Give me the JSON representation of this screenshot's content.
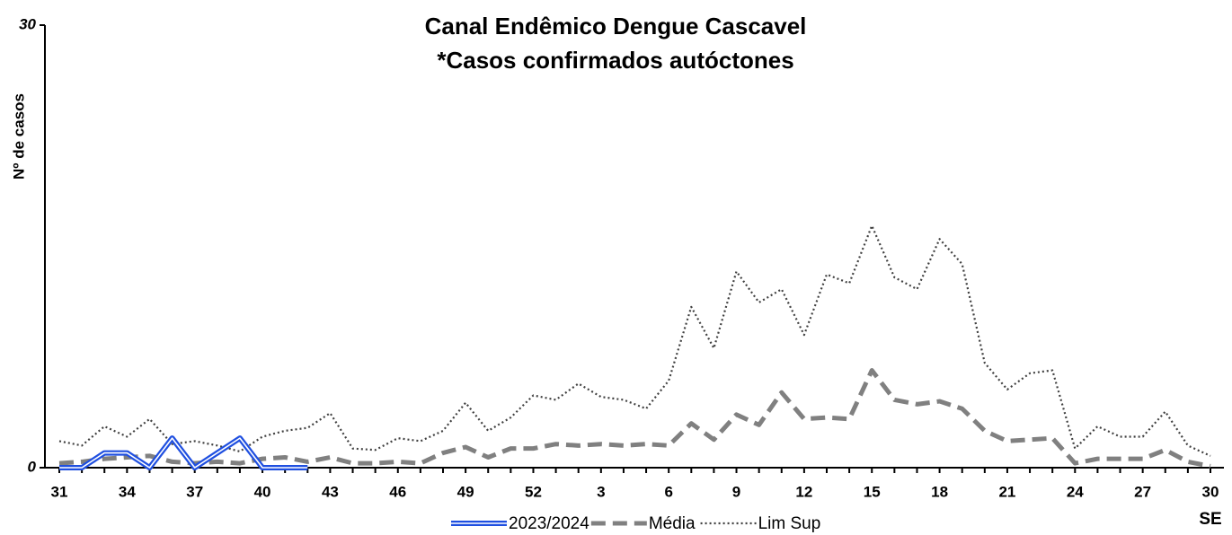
{
  "chart_data": {
    "type": "line",
    "title": "Canal Endêmico Dengue Cascavel",
    "subtitle": "*Casos confirmados autóctones",
    "y_label": "Nº de casos",
    "x_label": "SE",
    "categories": [
      "31",
      null,
      null,
      "34",
      null,
      null,
      "37",
      null,
      null,
      "40",
      null,
      null,
      "43",
      null,
      null,
      "46",
      null,
      null,
      "49",
      null,
      null,
      "52",
      null,
      null,
      "3",
      null,
      null,
      "6",
      null,
      null,
      "9",
      null,
      null,
      "12",
      null,
      null,
      "15",
      null,
      null,
      "18",
      null,
      null,
      "21",
      null,
      null,
      "24",
      null,
      null,
      "27",
      null,
      null,
      "30"
    ],
    "ylim": [
      0,
      30
    ],
    "yticks": [
      0,
      30
    ],
    "series": [
      {
        "name": "2023/2024",
        "color": "#1f4fe0",
        "line_style": "double",
        "values": [
          0,
          0,
          1,
          1,
          0,
          2,
          0,
          1,
          2,
          0,
          0,
          0,
          null,
          null,
          null,
          null,
          null,
          null,
          null,
          null,
          null,
          null,
          null,
          null,
          null,
          null,
          null,
          null,
          null,
          null,
          null,
          null,
          null,
          null,
          null,
          null,
          null,
          null,
          null,
          null,
          null,
          null,
          null,
          null,
          null,
          null,
          null,
          null,
          null,
          null,
          null,
          null
        ]
      },
      {
        "name": "Média",
        "color": "#808080",
        "line_style": "dashed",
        "values": [
          0.3,
          0.4,
          0.6,
          0.7,
          0.8,
          0.4,
          0.3,
          0.4,
          0.3,
          0.6,
          0.7,
          0.4,
          0.7,
          0.3,
          0.3,
          0.4,
          0.3,
          1.0,
          1.4,
          0.7,
          1.3,
          1.3,
          1.6,
          1.5,
          1.6,
          1.5,
          1.6,
          1.5,
          3.0,
          1.9,
          3.6,
          2.9,
          5.1,
          3.3,
          3.4,
          3.3,
          6.6,
          4.6,
          4.3,
          4.5,
          4.0,
          2.5,
          1.8,
          1.9,
          2.0,
          0.3,
          0.6,
          0.6,
          0.6,
          1.2,
          0.4,
          0.1
        ]
      },
      {
        "name": "Lim Sup",
        "color": "#404040",
        "line_style": "dotted",
        "values": [
          1.8,
          1.5,
          2.8,
          2.1,
          3.3,
          1.6,
          1.8,
          1.5,
          1.1,
          2.1,
          2.5,
          2.7,
          3.7,
          1.3,
          1.2,
          2.0,
          1.8,
          2.5,
          4.4,
          2.5,
          3.4,
          4.9,
          4.6,
          5.7,
          4.8,
          4.6,
          4.0,
          5.9,
          10.9,
          8.1,
          13.3,
          11.2,
          12.1,
          9.0,
          13.1,
          12.5,
          16.4,
          12.9,
          12.1,
          15.5,
          13.8,
          7.1,
          5.3,
          6.4,
          6.6,
          1.3,
          2.8,
          2.1,
          2.1,
          3.8,
          1.5,
          0.8
        ]
      }
    ]
  }
}
